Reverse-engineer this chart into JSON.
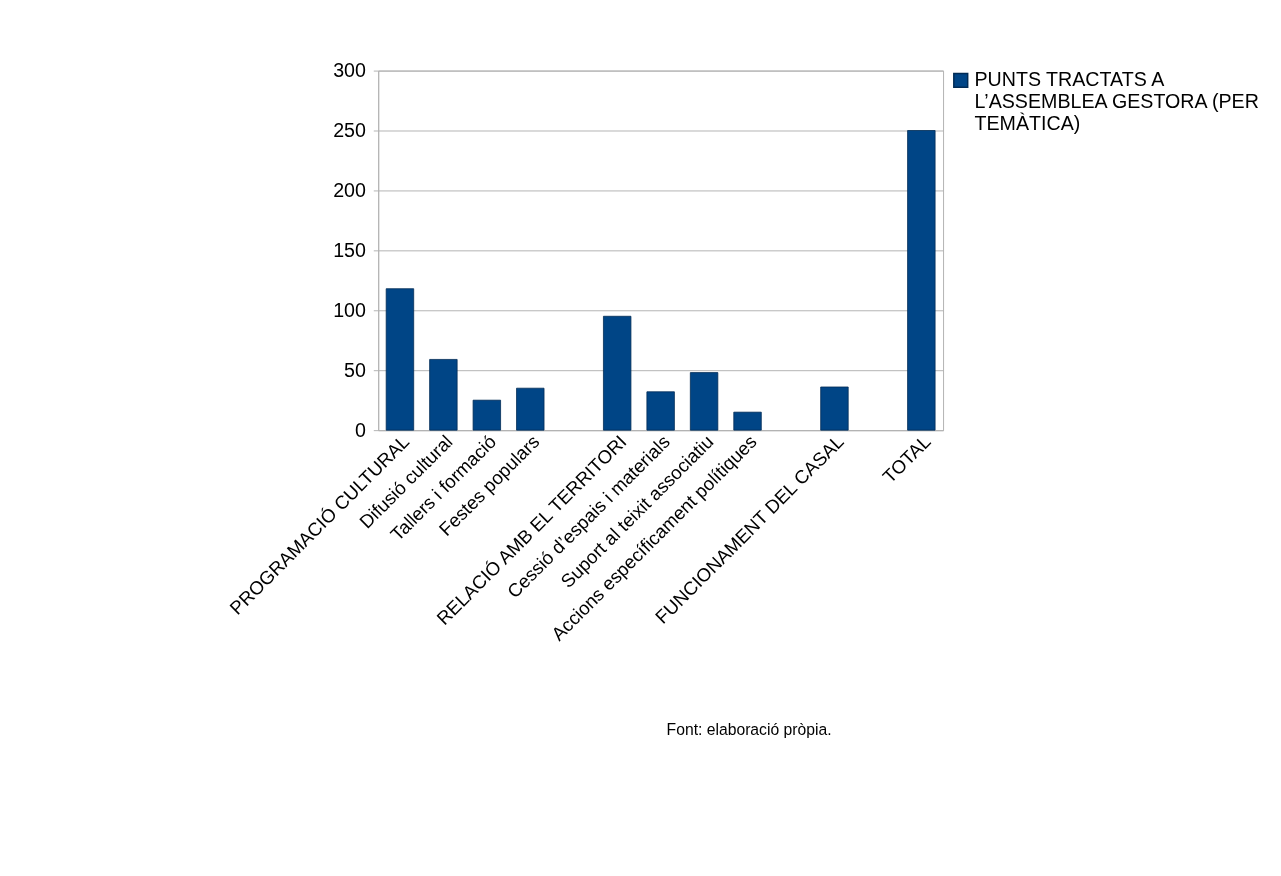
{
  "chart_data": {
    "type": "bar",
    "categories": [
      "PROGRAMACIÓ CULTURAL",
      "Difusió cultural",
      "Tallers i formació",
      "Festes populars",
      null,
      "RELACIÓ AMB EL TERRITORI",
      "Cessió d’espais i materials",
      "Suport al teixit associatiu",
      "Accions específicament polítiques",
      null,
      "FUNCIONAMENT DEL CASAL",
      null,
      "TOTAL"
    ],
    "series": [
      {
        "name": "PUNTS TRACTATS A L’ASSEMBLEA GESTORA (PER TEMÀTICA)",
        "color": "#004586",
        "values": [
          118,
          59,
          25,
          35,
          null,
          95,
          32,
          48,
          15,
          null,
          36,
          null,
          250
        ]
      }
    ],
    "ylim": [
      0,
      300
    ],
    "yticks": [
      0,
      50,
      100,
      150,
      200,
      250,
      300
    ],
    "grid": "y",
    "legend": "right",
    "annotations": [
      "Font: elaboració pròpia."
    ]
  }
}
